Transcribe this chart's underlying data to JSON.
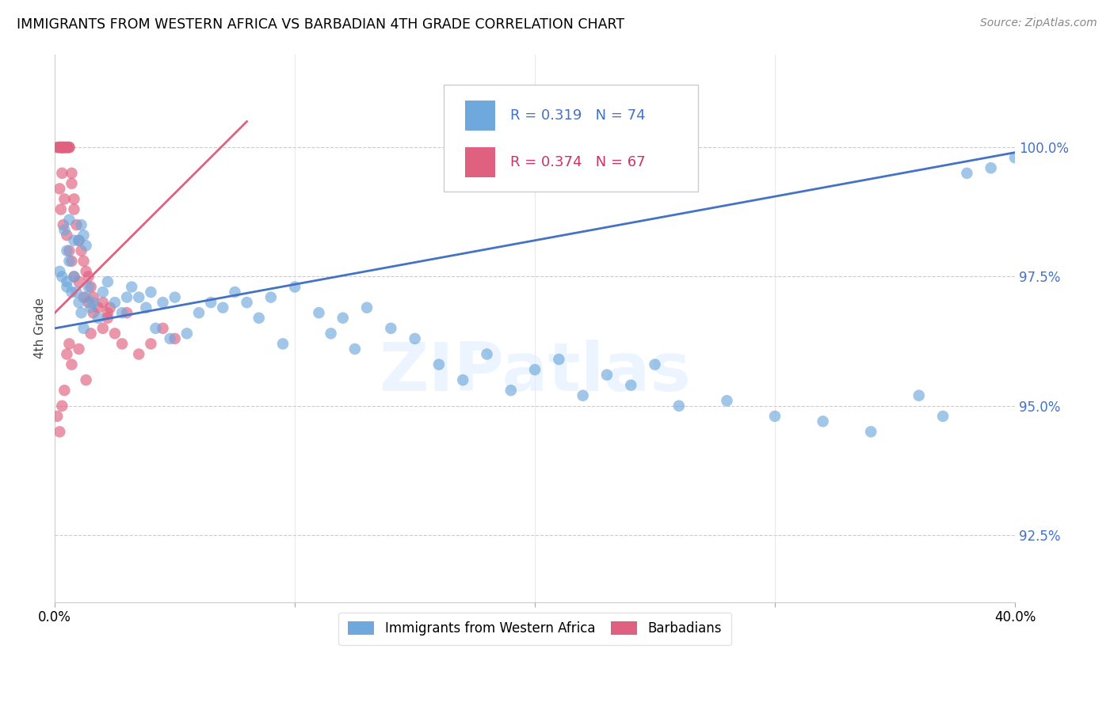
{
  "title": "IMMIGRANTS FROM WESTERN AFRICA VS BARBADIAN 4TH GRADE CORRELATION CHART",
  "source": "Source: ZipAtlas.com",
  "ylabel": "4th Grade",
  "ytick_labels": [
    "92.5%",
    "95.0%",
    "97.5%",
    "100.0%"
  ],
  "ytick_values": [
    92.5,
    95.0,
    97.5,
    100.0
  ],
  "xlim": [
    0.0,
    40.0
  ],
  "ylim": [
    91.2,
    101.8
  ],
  "legend_blue_label": "Immigrants from Western Africa",
  "legend_pink_label": "Barbadians",
  "R_blue": "0.319",
  "N_blue": "74",
  "R_pink": "0.374",
  "N_pink": "67",
  "blue_color": "#6fa8dc",
  "pink_color": "#e06080",
  "trend_blue_color": "#4472c4",
  "trend_pink_color": "#e06080",
  "watermark_text": "ZIPatlas",
  "blue_points_x": [
    0.2,
    0.3,
    0.5,
    0.5,
    0.6,
    0.7,
    0.8,
    0.9,
    1.0,
    1.1,
    1.2,
    1.3,
    1.4,
    1.5,
    1.6,
    1.8,
    2.0,
    2.2,
    2.5,
    2.8,
    3.0,
    3.2,
    3.5,
    3.8,
    4.0,
    4.2,
    4.5,
    4.8,
    5.0,
    5.5,
    6.0,
    6.5,
    7.0,
    7.5,
    8.0,
    8.5,
    9.0,
    9.5,
    10.0,
    11.0,
    11.5,
    12.0,
    12.5,
    13.0,
    14.0,
    15.0,
    16.0,
    17.0,
    18.0,
    19.0,
    20.0,
    21.0,
    22.0,
    23.0,
    24.0,
    25.0,
    26.0,
    28.0,
    30.0,
    32.0,
    34.0,
    36.0,
    37.0,
    38.0,
    39.0,
    40.0,
    1.0,
    1.1,
    1.2,
    1.3,
    0.4,
    0.5,
    0.6,
    0.8
  ],
  "blue_points_y": [
    97.6,
    97.5,
    97.4,
    97.3,
    97.8,
    97.2,
    97.5,
    97.2,
    97.0,
    96.8,
    96.5,
    97.1,
    97.3,
    96.9,
    97.0,
    96.7,
    97.2,
    97.4,
    97.0,
    96.8,
    97.1,
    97.3,
    97.1,
    96.9,
    97.2,
    96.5,
    97.0,
    96.3,
    97.1,
    96.4,
    96.8,
    97.0,
    96.9,
    97.2,
    97.0,
    96.7,
    97.1,
    96.2,
    97.3,
    96.8,
    96.4,
    96.7,
    96.1,
    96.9,
    96.5,
    96.3,
    95.8,
    95.5,
    96.0,
    95.3,
    95.7,
    95.9,
    95.2,
    95.6,
    95.4,
    95.8,
    95.0,
    95.1,
    94.8,
    94.7,
    94.5,
    95.2,
    94.8,
    99.5,
    99.6,
    99.8,
    98.2,
    98.5,
    98.3,
    98.1,
    98.4,
    98.0,
    98.6,
    98.2
  ],
  "pink_points_x": [
    0.1,
    0.15,
    0.2,
    0.2,
    0.25,
    0.3,
    0.3,
    0.3,
    0.3,
    0.35,
    0.4,
    0.4,
    0.4,
    0.5,
    0.5,
    0.5,
    0.55,
    0.6,
    0.6,
    0.7,
    0.7,
    0.8,
    0.8,
    0.9,
    1.0,
    1.1,
    1.2,
    1.3,
    1.4,
    1.5,
    1.6,
    1.8,
    2.0,
    2.2,
    2.5,
    2.8,
    3.0,
    3.5,
    4.0,
    4.5,
    5.0,
    0.2,
    0.25,
    0.3,
    0.35,
    0.4,
    0.5,
    0.6,
    0.7,
    0.8,
    1.0,
    1.2,
    1.4,
    1.6,
    2.0,
    2.3,
    0.1,
    0.2,
    0.3,
    0.4,
    0.5,
    0.6,
    0.7,
    1.0,
    1.3,
    1.5,
    2.2
  ],
  "pink_points_y": [
    100.0,
    100.0,
    100.0,
    100.0,
    100.0,
    100.0,
    100.0,
    100.0,
    100.0,
    100.0,
    100.0,
    100.0,
    100.0,
    100.0,
    100.0,
    100.0,
    100.0,
    100.0,
    100.0,
    99.5,
    99.3,
    99.0,
    98.8,
    98.5,
    98.2,
    98.0,
    97.8,
    97.6,
    97.5,
    97.3,
    97.1,
    96.9,
    97.0,
    96.7,
    96.4,
    96.2,
    96.8,
    96.0,
    96.2,
    96.5,
    96.3,
    99.2,
    98.8,
    99.5,
    98.5,
    99.0,
    98.3,
    98.0,
    97.8,
    97.5,
    97.4,
    97.1,
    97.0,
    96.8,
    96.5,
    96.9,
    94.8,
    94.5,
    95.0,
    95.3,
    96.0,
    96.2,
    95.8,
    96.1,
    95.5,
    96.4,
    96.8
  ],
  "blue_trend_x": [
    0.0,
    40.0
  ],
  "blue_trend_y": [
    96.5,
    99.9
  ],
  "pink_trend_x": [
    0.0,
    8.0
  ],
  "pink_trend_y": [
    96.8,
    100.5
  ]
}
